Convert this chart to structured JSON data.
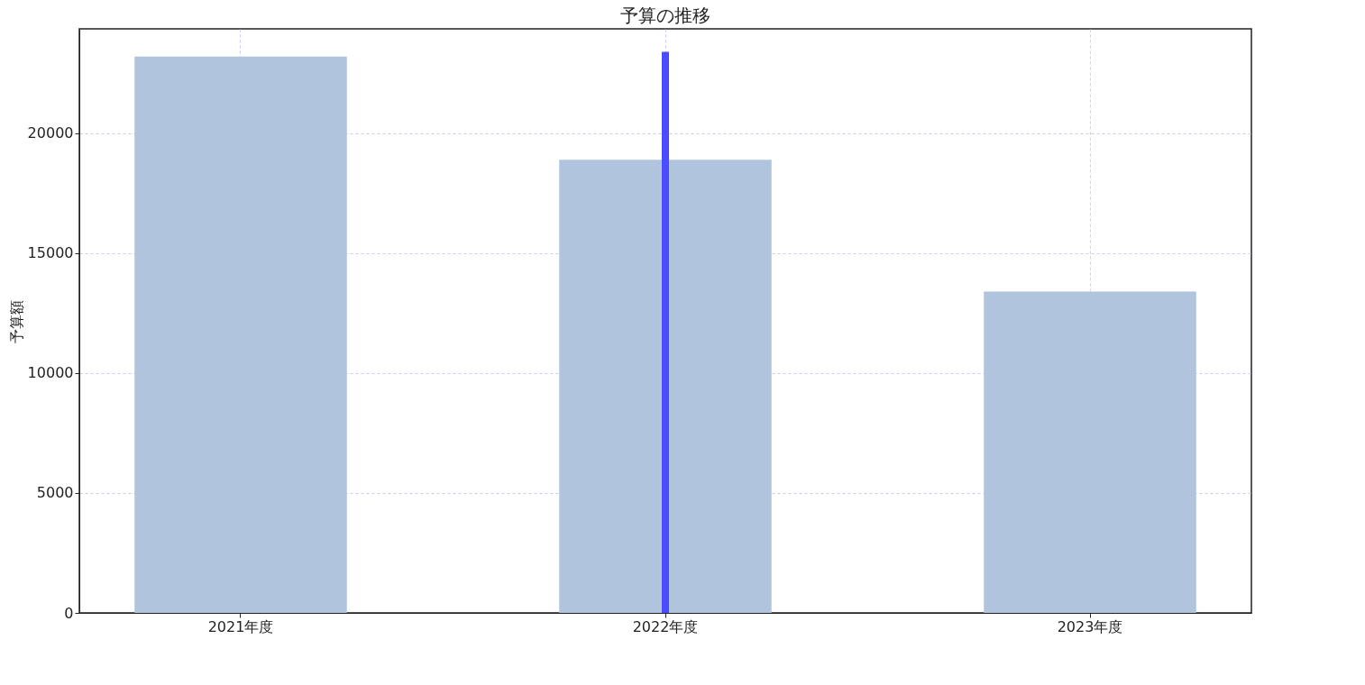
{
  "chart_data": {
    "type": "bar",
    "title": "予算の推移",
    "ylabel": "予算額",
    "categories": [
      "2021年度",
      "2022年度",
      "2023年度"
    ],
    "series": [
      {
        "color": "#b0c4de",
        "values": [
          23200,
          18900,
          13400
        ]
      },
      {
        "type": "bar",
        "color": "#4b4bff",
        "values": [
          null,
          23400,
          null
        ]
      }
    ],
    "ylim": [
      0,
      24360
    ],
    "yticks": [
      0,
      5000,
      10000,
      15000,
      20000
    ],
    "grid": true
  }
}
